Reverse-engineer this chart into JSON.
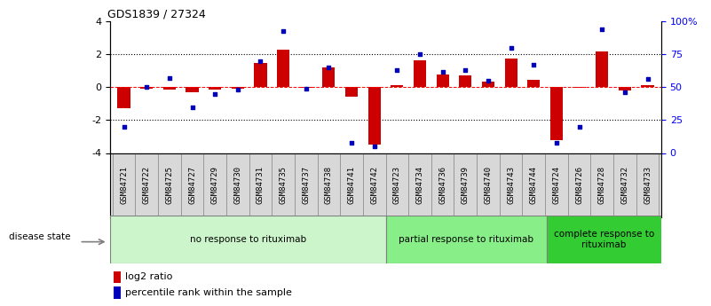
{
  "title": "GDS1839 / 27324",
  "samples": [
    "GSM84721",
    "GSM84722",
    "GSM84725",
    "GSM84727",
    "GSM84729",
    "GSM84730",
    "GSM84731",
    "GSM84735",
    "GSM84737",
    "GSM84738",
    "GSM84741",
    "GSM84742",
    "GSM84723",
    "GSM84734",
    "GSM84736",
    "GSM84739",
    "GSM84740",
    "GSM84743",
    "GSM84744",
    "GSM84724",
    "GSM84726",
    "GSM84728",
    "GSM84732",
    "GSM84733"
  ],
  "log2_ratio": [
    -1.3,
    -0.1,
    -0.15,
    -0.3,
    -0.15,
    -0.1,
    1.5,
    2.3,
    -0.05,
    1.2,
    -0.6,
    -3.5,
    0.15,
    1.65,
    0.75,
    0.7,
    0.35,
    1.75,
    0.45,
    -3.2,
    -0.05,
    2.2,
    -0.2,
    0.1
  ],
  "percentile": [
    20,
    50,
    57,
    35,
    45,
    48,
    70,
    93,
    49,
    65,
    8,
    5,
    63,
    75,
    62,
    63,
    55,
    80,
    67,
    8,
    20,
    94,
    46,
    56
  ],
  "groups": [
    {
      "label": "no response to rituximab",
      "start": 0,
      "end": 12,
      "color": "#ccf5cc"
    },
    {
      "label": "partial response to rituximab",
      "start": 12,
      "end": 19,
      "color": "#88ee88"
    },
    {
      "label": "complete response to\nrituximab",
      "start": 19,
      "end": 24,
      "color": "#33cc33"
    }
  ],
  "bar_color": "#cc0000",
  "dot_color": "#0000bb",
  "ylim_left": [
    -4,
    4
  ],
  "yticks_left": [
    -4,
    -2,
    0,
    2,
    4
  ],
  "yticks_right": [
    0,
    25,
    50,
    75,
    100
  ],
  "ytick_labels_right": [
    "0",
    "25",
    "50",
    "75",
    "100%"
  ],
  "dotted_lines": [
    -2,
    2
  ],
  "background_color": "#ffffff"
}
